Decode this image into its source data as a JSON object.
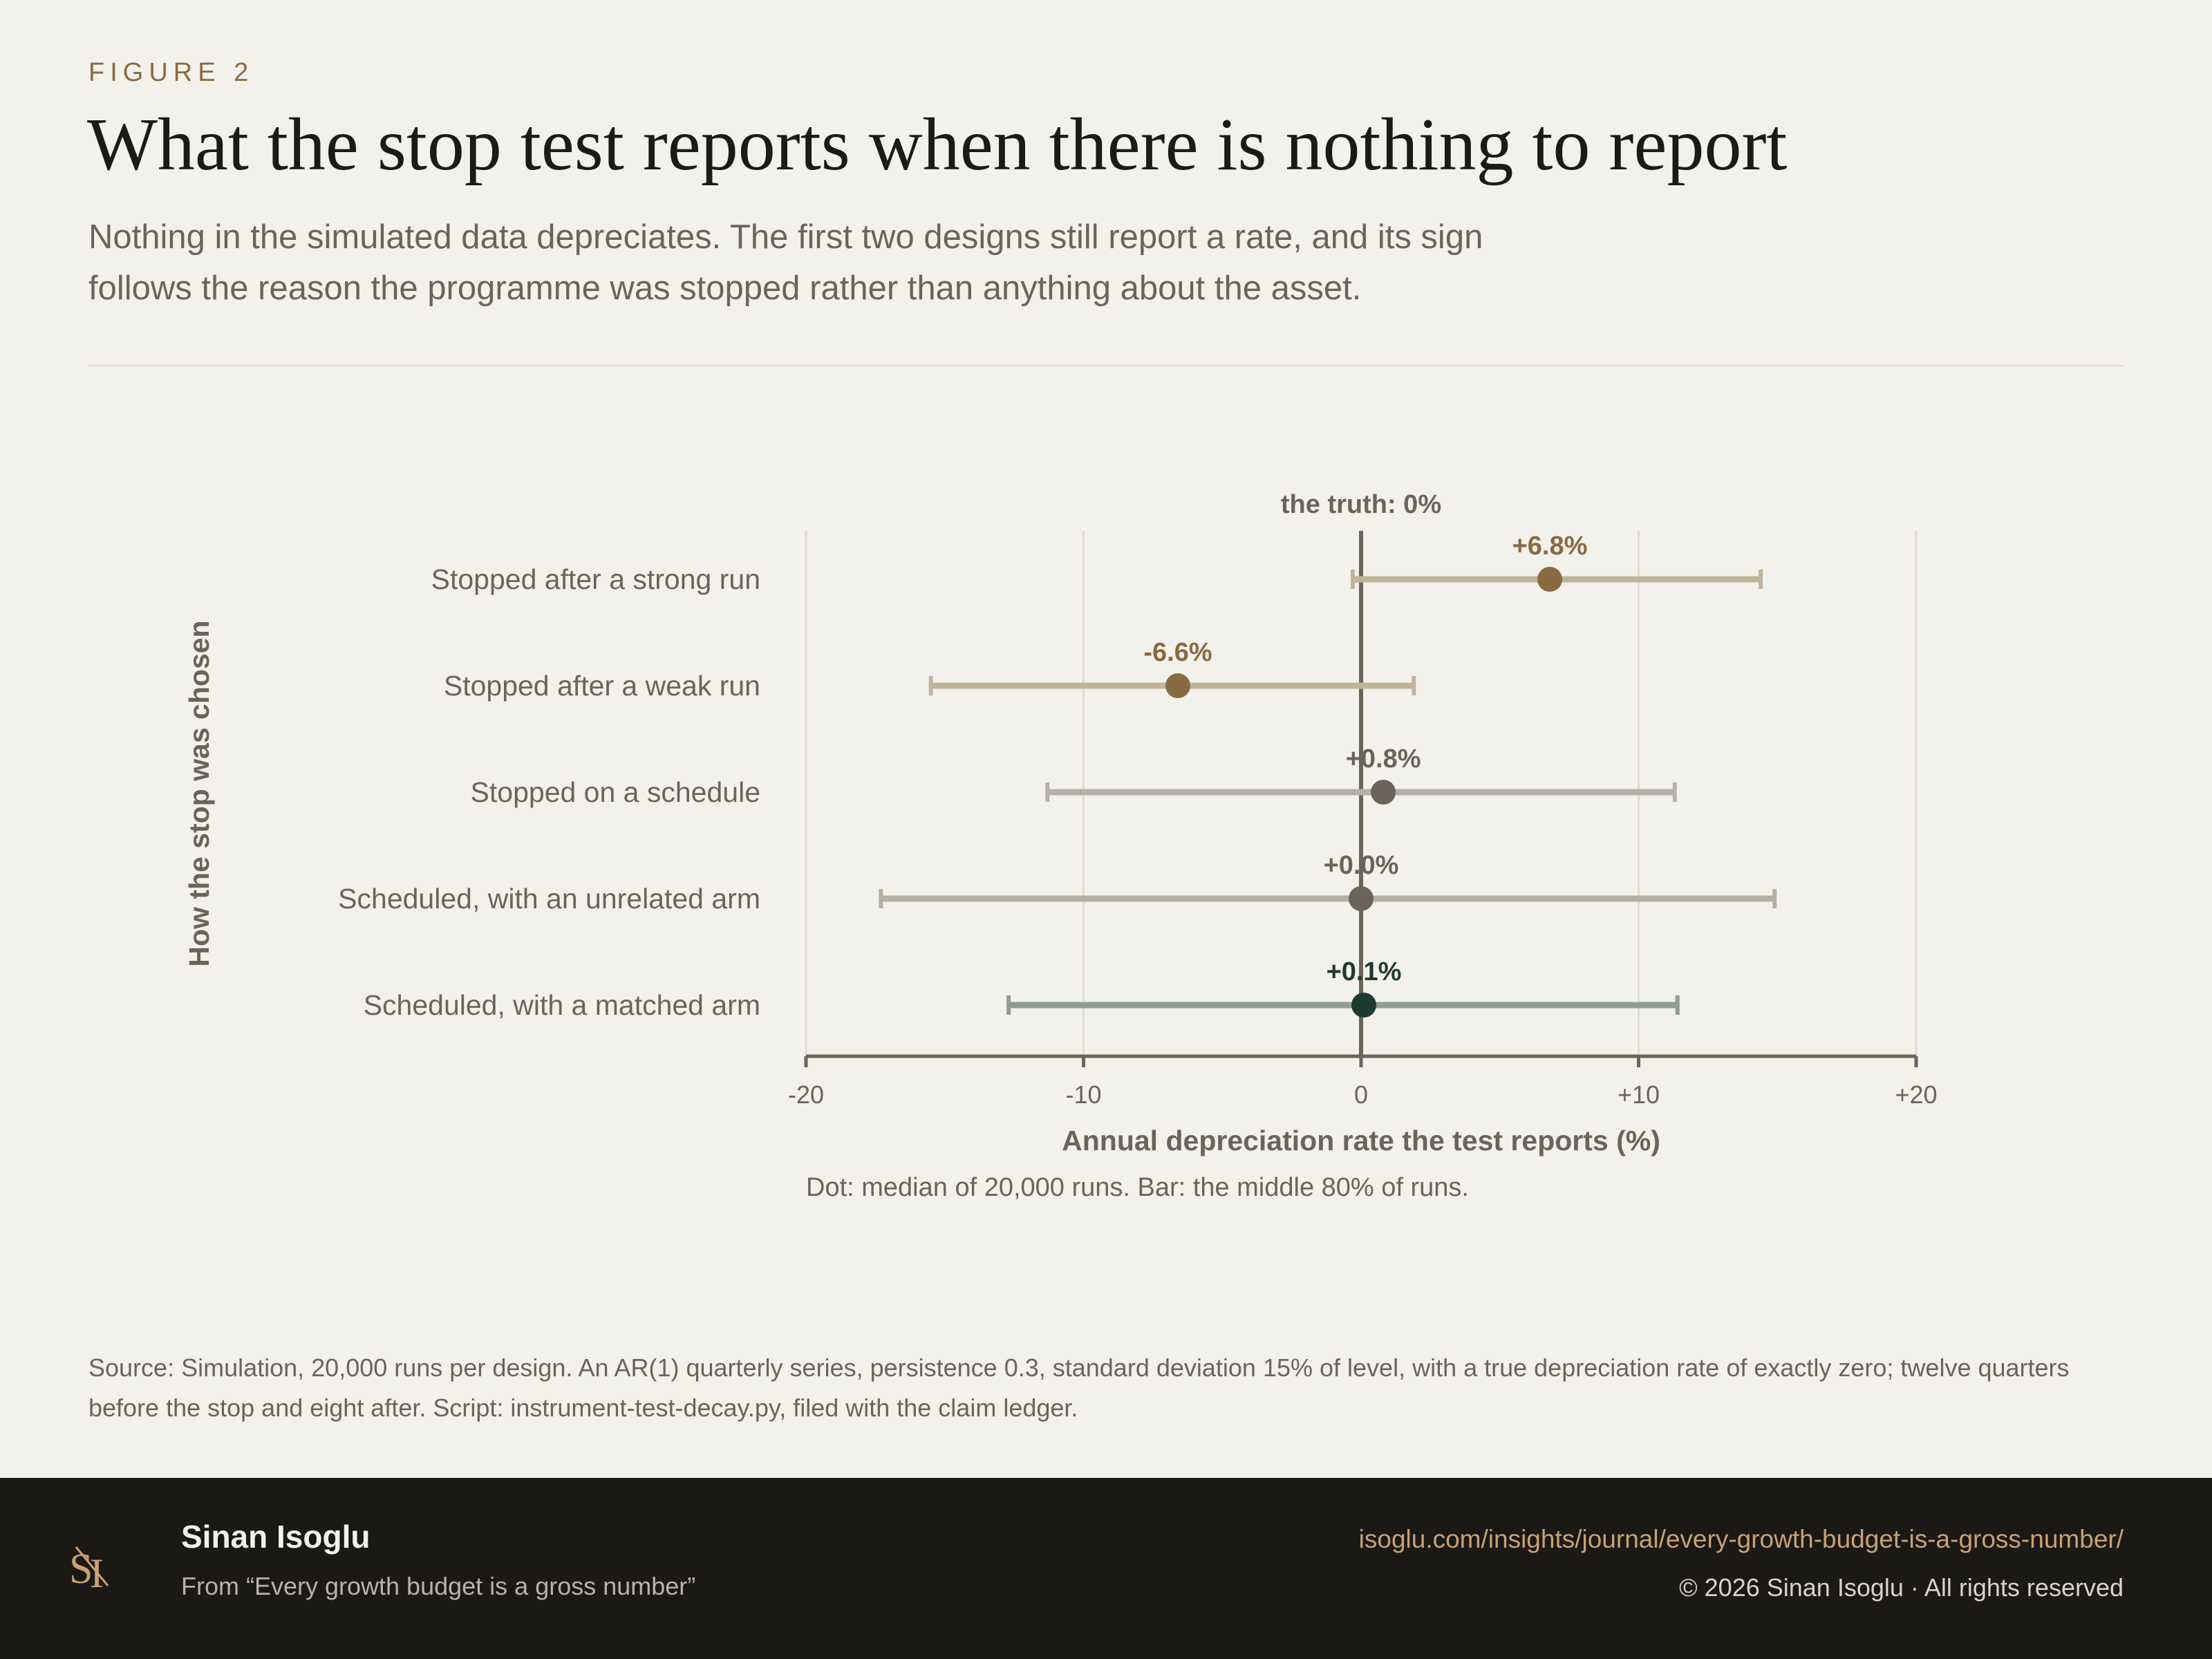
{
  "header": {
    "figure_label": "FIGURE 2",
    "title": "What the stop test reports when there is nothing to report",
    "subtitle": "Nothing in the simulated data depreciates. The first two designs still report a rate, and its sign follows the reason the programme was stopped rather than anything about the asset."
  },
  "chart_data": {
    "type": "scatter",
    "ylabel": "How the stop was chosen",
    "xlabel": "Annual depreciation rate the test reports (%)",
    "note": "Dot: median of 20,000 runs. Bar: the middle 80% of runs.",
    "xlim": [
      -20,
      20
    ],
    "x_ticks": [
      -20,
      -10,
      0,
      10,
      20
    ],
    "x_tick_labels": [
      "-20",
      "-10",
      "0",
      "+10",
      "+20"
    ],
    "grid": true,
    "reference_line": {
      "x": 0,
      "label": "the truth: 0%"
    },
    "categories": [
      "Stopped after a strong run",
      "Stopped after a weak run",
      "Stopped on a schedule",
      "Scheduled, with an unrelated arm",
      "Scheduled, with a matched arm"
    ],
    "medians": [
      6.8,
      -6.6,
      0.8,
      0.0,
      0.1
    ],
    "median_labels": [
      "+6.8%",
      "-6.6%",
      "+0.8%",
      "+0.0%",
      "+0.1%"
    ],
    "interval_low": [
      -0.3,
      -15.5,
      -11.3,
      -17.3,
      -12.7
    ],
    "interval_high": [
      14.4,
      1.9,
      11.3,
      14.9,
      11.4
    ],
    "colors": {
      "dot": [
        "#8a6a40",
        "#8a6a40",
        "#6b6458",
        "#6b6458",
        "#1f3a33"
      ],
      "bar": [
        "#c2b39c",
        "#c2b39c",
        "#b3b0a6",
        "#b3b0a6",
        "#8e9e97"
      ],
      "label": [
        "#8a6a40",
        "#8a6a40",
        "#6b6458",
        "#6b6458",
        "#1f3a33"
      ]
    }
  },
  "source": "Source: Simulation, 20,000 runs per design. An AR(1) quarterly series, persistence 0.3, standard deviation 15% of level, with a true depreciation rate of exactly zero; twelve quarters before the stop and eight after. Script: instrument-test-decay.py, filed with the claim ledger.",
  "footer": {
    "logo_text": "SI",
    "author": "Sinan Isoglu",
    "from": "From “Every growth budget is a gross number”",
    "url": "isoglu.com/insights/journal/every-growth-budget-is-a-gross-number/",
    "copyright": "© 2026 Sinan Isoglu · All rights reserved"
  }
}
